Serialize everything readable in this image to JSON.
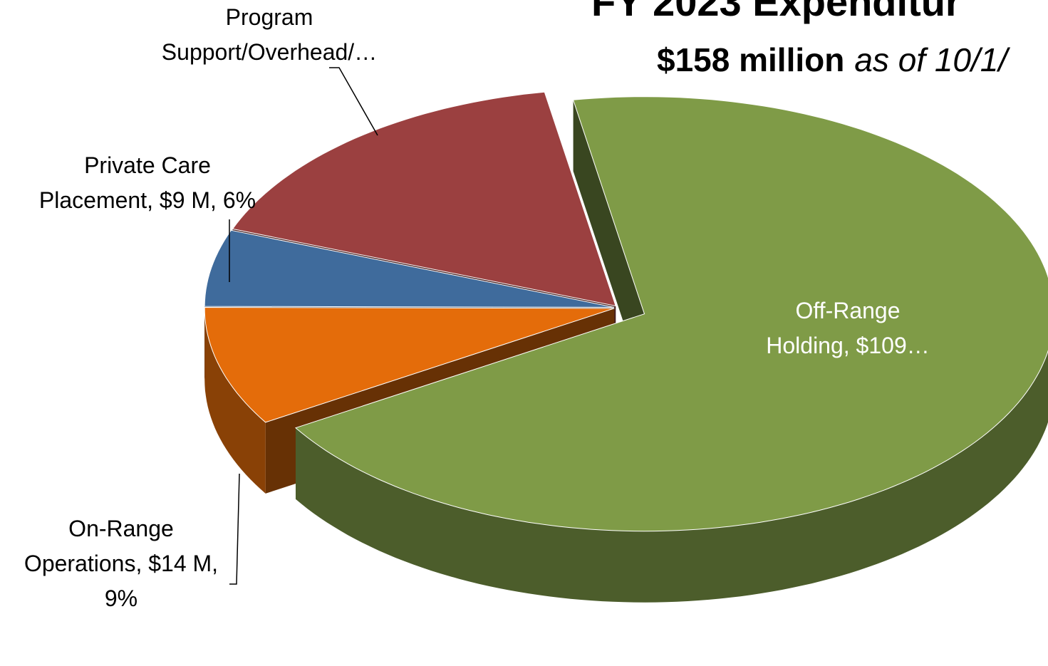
{
  "chart_data": {
    "type": "pie3d",
    "title": "FY 2023 Expenditur",
    "subtitle": "$158 million",
    "subtitle_note": "as of  10/1/",
    "categories": [
      "Off-Range\nHolding, $109…",
      "On-Range\nOperations, $14 M,\n9%",
      "Private Care\nPlacement, $9 M, 6%",
      "Program\nSupport/Overhead/…"
    ],
    "values": [
      109,
      14,
      9,
      26
    ],
    "colors": [
      "#7f9b47",
      "#e46c0a",
      "#3f6b9c",
      "#9b4040"
    ],
    "label_colors": [
      "#ffffff",
      "#000000",
      "#000000",
      "#000000"
    ]
  }
}
